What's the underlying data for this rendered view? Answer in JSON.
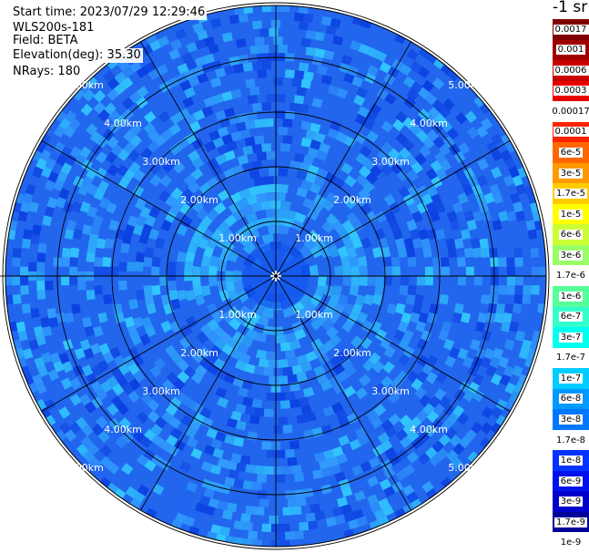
{
  "header": {
    "start_time": "Start time: 2023/07/29 12:29:46",
    "instrument": "WLS200s-181",
    "field": "Field: BETA",
    "elevation": "Elevation(deg): 35.30",
    "nrays": "NRays: 180"
  },
  "ring_labels": [
    "1.00km",
    "2.00km",
    "3.00km",
    "4.00km",
    "5.00km"
  ],
  "ring_ranges_km": [
    1,
    2,
    3,
    4,
    5
  ],
  "colorbar": {
    "unit_label": "-1 sr",
    "levels": [
      {
        "label": "0.0017",
        "color": "#7f0000",
        "text": "#ffffff"
      },
      {
        "label": "0.001",
        "color": "#a00000",
        "text": "#ffffff"
      },
      {
        "label": "0.0006",
        "color": "#c80000",
        "text": "#ffffff"
      },
      {
        "label": "0.0003",
        "color": "#e80000",
        "text": "#ffffff"
      },
      {
        "label": "0.00017",
        "color": "#ffffff",
        "text": "#000000"
      },
      {
        "label": "0.0001",
        "color": "#ff2200",
        "text": "#000000"
      },
      {
        "label": "6e-5",
        "color": "#ff6600",
        "text": "#000000"
      },
      {
        "label": "3e-5",
        "color": "#ff9900",
        "text": "#000000"
      },
      {
        "label": "1.7e-5",
        "color": "#ffcc00",
        "text": "#000000"
      },
      {
        "label": "1e-5",
        "color": "#ffff00",
        "text": "#000000"
      },
      {
        "label": "6e-6",
        "color": "#ccff33",
        "text": "#000000"
      },
      {
        "label": "3e-6",
        "color": "#99ff66",
        "text": "#000000"
      },
      {
        "label": "1.7e-6",
        "color": "#ffffff",
        "text": "#000000"
      },
      {
        "label": "1e-6",
        "color": "#55ff99",
        "text": "#000000"
      },
      {
        "label": "6e-7",
        "color": "#33ffcc",
        "text": "#000000"
      },
      {
        "label": "3e-7",
        "color": "#00ffee",
        "text": "#000000"
      },
      {
        "label": "1.7e-7",
        "color": "#ffffff",
        "text": "#000000"
      },
      {
        "label": "1e-7",
        "color": "#00ccff",
        "text": "#000000"
      },
      {
        "label": "6e-8",
        "color": "#0099ff",
        "text": "#000000"
      },
      {
        "label": "3e-8",
        "color": "#0077ff",
        "text": "#000000"
      },
      {
        "label": "1.7e-8",
        "color": "#ffffff",
        "text": "#000000"
      },
      {
        "label": "1e-8",
        "color": "#0033ff",
        "text": "#ffffff"
      },
      {
        "label": "6e-9",
        "color": "#0011ee",
        "text": "#ffffff"
      },
      {
        "label": "3e-9",
        "color": "#0000cc",
        "text": "#ffffff"
      },
      {
        "label": "1.7e-9",
        "color": "#000099",
        "text": "#ffffff"
      },
      {
        "label": "1e-9",
        "color": "#ffffff",
        "text": "#000000"
      }
    ]
  },
  "colors": {
    "field_base": "#2266ee",
    "field_dark": "#0b3fe0",
    "field_light": "#33a0ff",
    "field_cyan": "#33ccff",
    "near_center": "#1155ee",
    "grid_line": "#000000",
    "ring_label": "#ffffff"
  }
}
